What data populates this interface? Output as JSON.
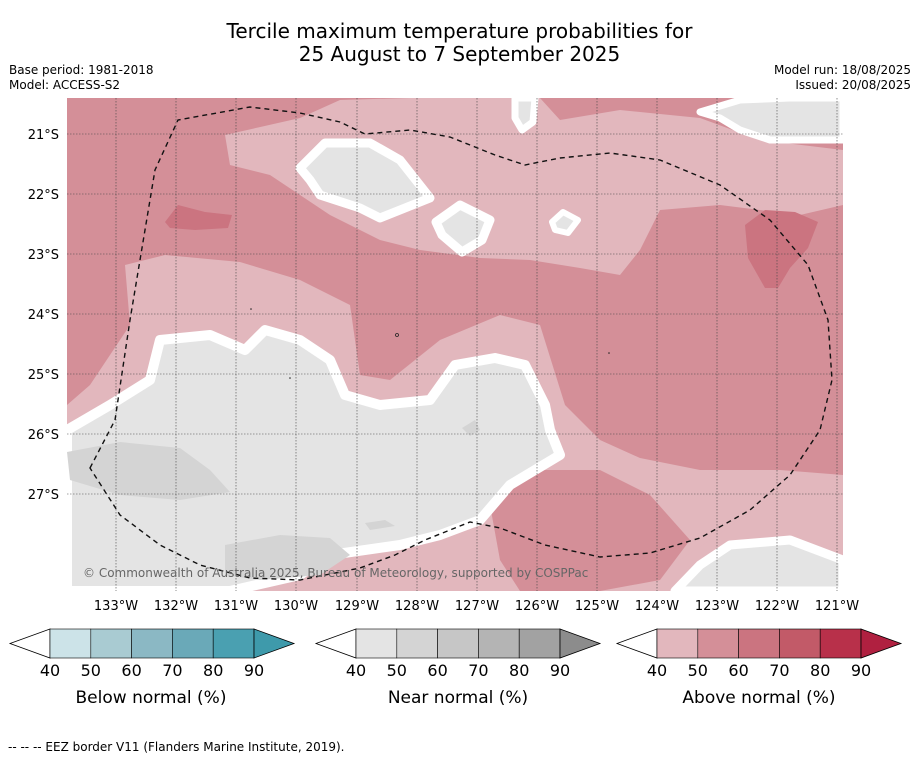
{
  "title_line1": "Tercile maximum temperature probabilities for",
  "title_line2": "25 August to 7 September 2025",
  "base_period": "Base period: 1981-2018",
  "model": "Model: ACCESS-S2",
  "model_run": "Model run: 18/08/2025",
  "issued": "Issued: 20/08/2025",
  "copyright": "© Commonwealth of Australia 2025, Bureau of Meteorology, supported by COSPPac",
  "lat_labels": [
    "21°S",
    "22°S",
    "23°S",
    "24°S",
    "25°S",
    "26°S",
    "27°S"
  ],
  "lon_labels": [
    "133°W",
    "132°W",
    "131°W",
    "130°W",
    "129°W",
    "128°W",
    "127°W",
    "126°W",
    "125°W",
    "124°W",
    "123°W",
    "122°W",
    "121°W"
  ],
  "colorbars": [
    {
      "label": "Below normal (%)",
      "ticks": [
        "40",
        "50",
        "60",
        "70",
        "80",
        "90"
      ],
      "colors": [
        "#cce3e8",
        "#a9cbd2",
        "#8bb8c4",
        "#6aa9b8",
        "#4aa0b1"
      ],
      "arrow": "#3e9aab"
    },
    {
      "label": "Near normal (%)",
      "ticks": [
        "40",
        "50",
        "60",
        "70",
        "80",
        "90"
      ],
      "colors": [
        "#e4e4e4",
        "#d4d4d4",
        "#c6c6c6",
        "#b4b4b4",
        "#a2a2a2"
      ],
      "arrow": "#8c8c8c"
    },
    {
      "label": "Above normal (%)",
      "ticks": [
        "40",
        "50",
        "60",
        "70",
        "80",
        "90"
      ],
      "colors": [
        "#e2b7bd",
        "#d48f98",
        "#cb7480",
        "#c25a68",
        "#b8304a"
      ],
      "arrow": "#b02040"
    }
  ],
  "legend_colors": {
    "above_40": "#e2b7bd",
    "above_50": "#d48f98",
    "above_60": "#cb7480",
    "near_40": "#e4e4e4",
    "near_50": "#d4d4d4"
  },
  "footnote": "--  --  -- EEZ border V11 (Flanders Marine Institute, 2019)."
}
